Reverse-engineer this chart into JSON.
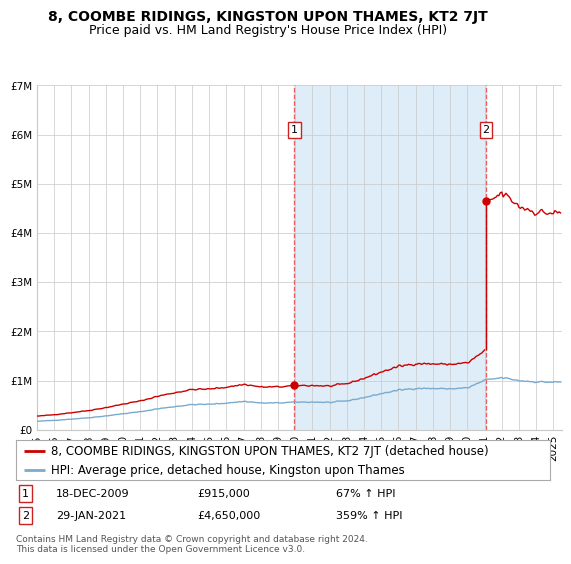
{
  "title": "8, COOMBE RIDINGS, KINGSTON UPON THAMES, KT2 7JT",
  "subtitle": "Price paid vs. HM Land Registry's House Price Index (HPI)",
  "ylim": [
    0,
    7000000
  ],
  "yticks": [
    0,
    1000000,
    2000000,
    3000000,
    4000000,
    5000000,
    6000000,
    7000000
  ],
  "ytick_labels": [
    "£0",
    "£1M",
    "£2M",
    "£3M",
    "£4M",
    "£5M",
    "£6M",
    "£7M"
  ],
  "xlim_start": 1995.0,
  "xlim_end": 2025.5,
  "sale1_x": 2009.96,
  "sale1_y": 915000,
  "sale2_x": 2021.08,
  "sale2_y": 4650000,
  "sale1_label": "1",
  "sale2_label": "2",
  "sale1_date": "18-DEC-2009",
  "sale1_price": "£915,000",
  "sale1_hpi": "67% ↑ HPI",
  "sale2_date": "29-JAN-2021",
  "sale2_price": "£4,650,000",
  "sale2_hpi": "359% ↑ HPI",
  "legend_line1": "8, COOMBE RIDINGS, KINGSTON UPON THAMES, KT2 7JT (detached house)",
  "legend_line2": "HPI: Average price, detached house, Kingston upon Thames",
  "footer": "Contains HM Land Registry data © Crown copyright and database right 2024.\nThis data is licensed under the Open Government Licence v3.0.",
  "hpi_color": "#7aabcf",
  "price_color": "#cc0000",
  "vline_color": "#e86060",
  "shade_color": "#deedf7",
  "background_color": "#ffffff",
  "grid_color": "#c8c8c8",
  "title_fontsize": 10,
  "subtitle_fontsize": 9,
  "tick_fontsize": 7.5,
  "legend_fontsize": 8.5,
  "annotation_fontsize": 8,
  "footer_fontsize": 6.5
}
